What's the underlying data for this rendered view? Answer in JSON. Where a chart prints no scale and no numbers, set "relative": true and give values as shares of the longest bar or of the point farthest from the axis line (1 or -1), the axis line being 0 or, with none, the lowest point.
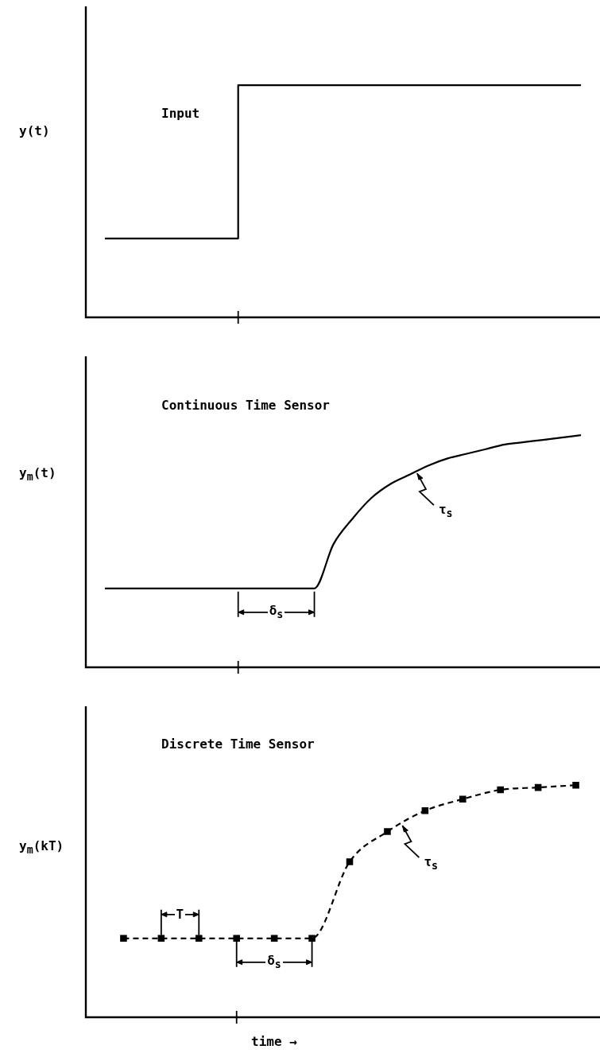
{
  "chart_data": [
    {
      "type": "step",
      "title": "Input",
      "ylabel": "y(t)",
      "relative": true,
      "legend": false,
      "categories": [
        null,
        null,
        null,
        null,
        null,
        null,
        null,
        null,
        null,
        null,
        null,
        null,
        null,
        null,
        null,
        null,
        null,
        null,
        null,
        null,
        null,
        null,
        null,
        null,
        null,
        null,
        null,
        null
      ],
      "series": [
        {
          "color": "#000000",
          "values": [
            null,
            0.34,
            0.34,
            0.34,
            0.34,
            0.34,
            0.34,
            0.34,
            1,
            1,
            1,
            1,
            1,
            1,
            1,
            1,
            1,
            1,
            1,
            1,
            1,
            1,
            1,
            1,
            1,
            1,
            1,
            null
          ]
        }
      ]
    },
    {
      "type": "line",
      "title": "Continuous Time Sensor",
      "ylabel": "y$_{m}$(t)",
      "relative": true,
      "legend": false,
      "annotations": [
        "δ$_{s}$",
        "τ$_{s}$"
      ],
      "categories": [
        null,
        null,
        null,
        null,
        null,
        null,
        null,
        null,
        null,
        null,
        null,
        null,
        null,
        null,
        null,
        null,
        null,
        null,
        null,
        null,
        null,
        null,
        null,
        null,
        null,
        null,
        null,
        null
      ],
      "series": [
        {
          "color": "#000000",
          "values": [
            null,
            0.34,
            0.34,
            0.34,
            0.34,
            0.34,
            0.34,
            0.34,
            0.34,
            0.34,
            0.34,
            0.34,
            0.34,
            0.53,
            0.64,
            0.73,
            0.79,
            0.83,
            0.87,
            0.9,
            0.92,
            0.94,
            0.96,
            0.97,
            0.98,
            0.99,
            1,
            null
          ]
        }
      ]
    },
    {
      "type": "line",
      "title": "Discrete Time Sensor",
      "ylabel": "y$_{m}$(kT)",
      "xlabel": "time →",
      "relative": true,
      "legend": false,
      "line_style": "dashed",
      "marker": "square",
      "annotations": [
        "T",
        "δ$_{s}$",
        "τ$_{s}$"
      ],
      "categories": [
        null,
        null,
        null,
        null,
        null,
        null,
        null,
        null,
        null,
        null,
        null,
        null,
        null,
        null,
        null,
        null,
        null,
        null,
        null,
        null,
        null,
        null,
        null,
        null,
        null,
        null,
        null,
        null
      ],
      "series": [
        {
          "color": "#000000",
          "values": [
            null,
            null,
            0.34,
            null,
            0.34,
            null,
            0.34,
            null,
            0.34,
            null,
            0.34,
            null,
            0.34,
            null,
            0.67,
            null,
            0.8,
            null,
            0.89,
            null,
            0.94,
            null,
            0.98,
            null,
            0.99,
            null,
            1,
            null
          ]
        }
      ]
    }
  ]
}
